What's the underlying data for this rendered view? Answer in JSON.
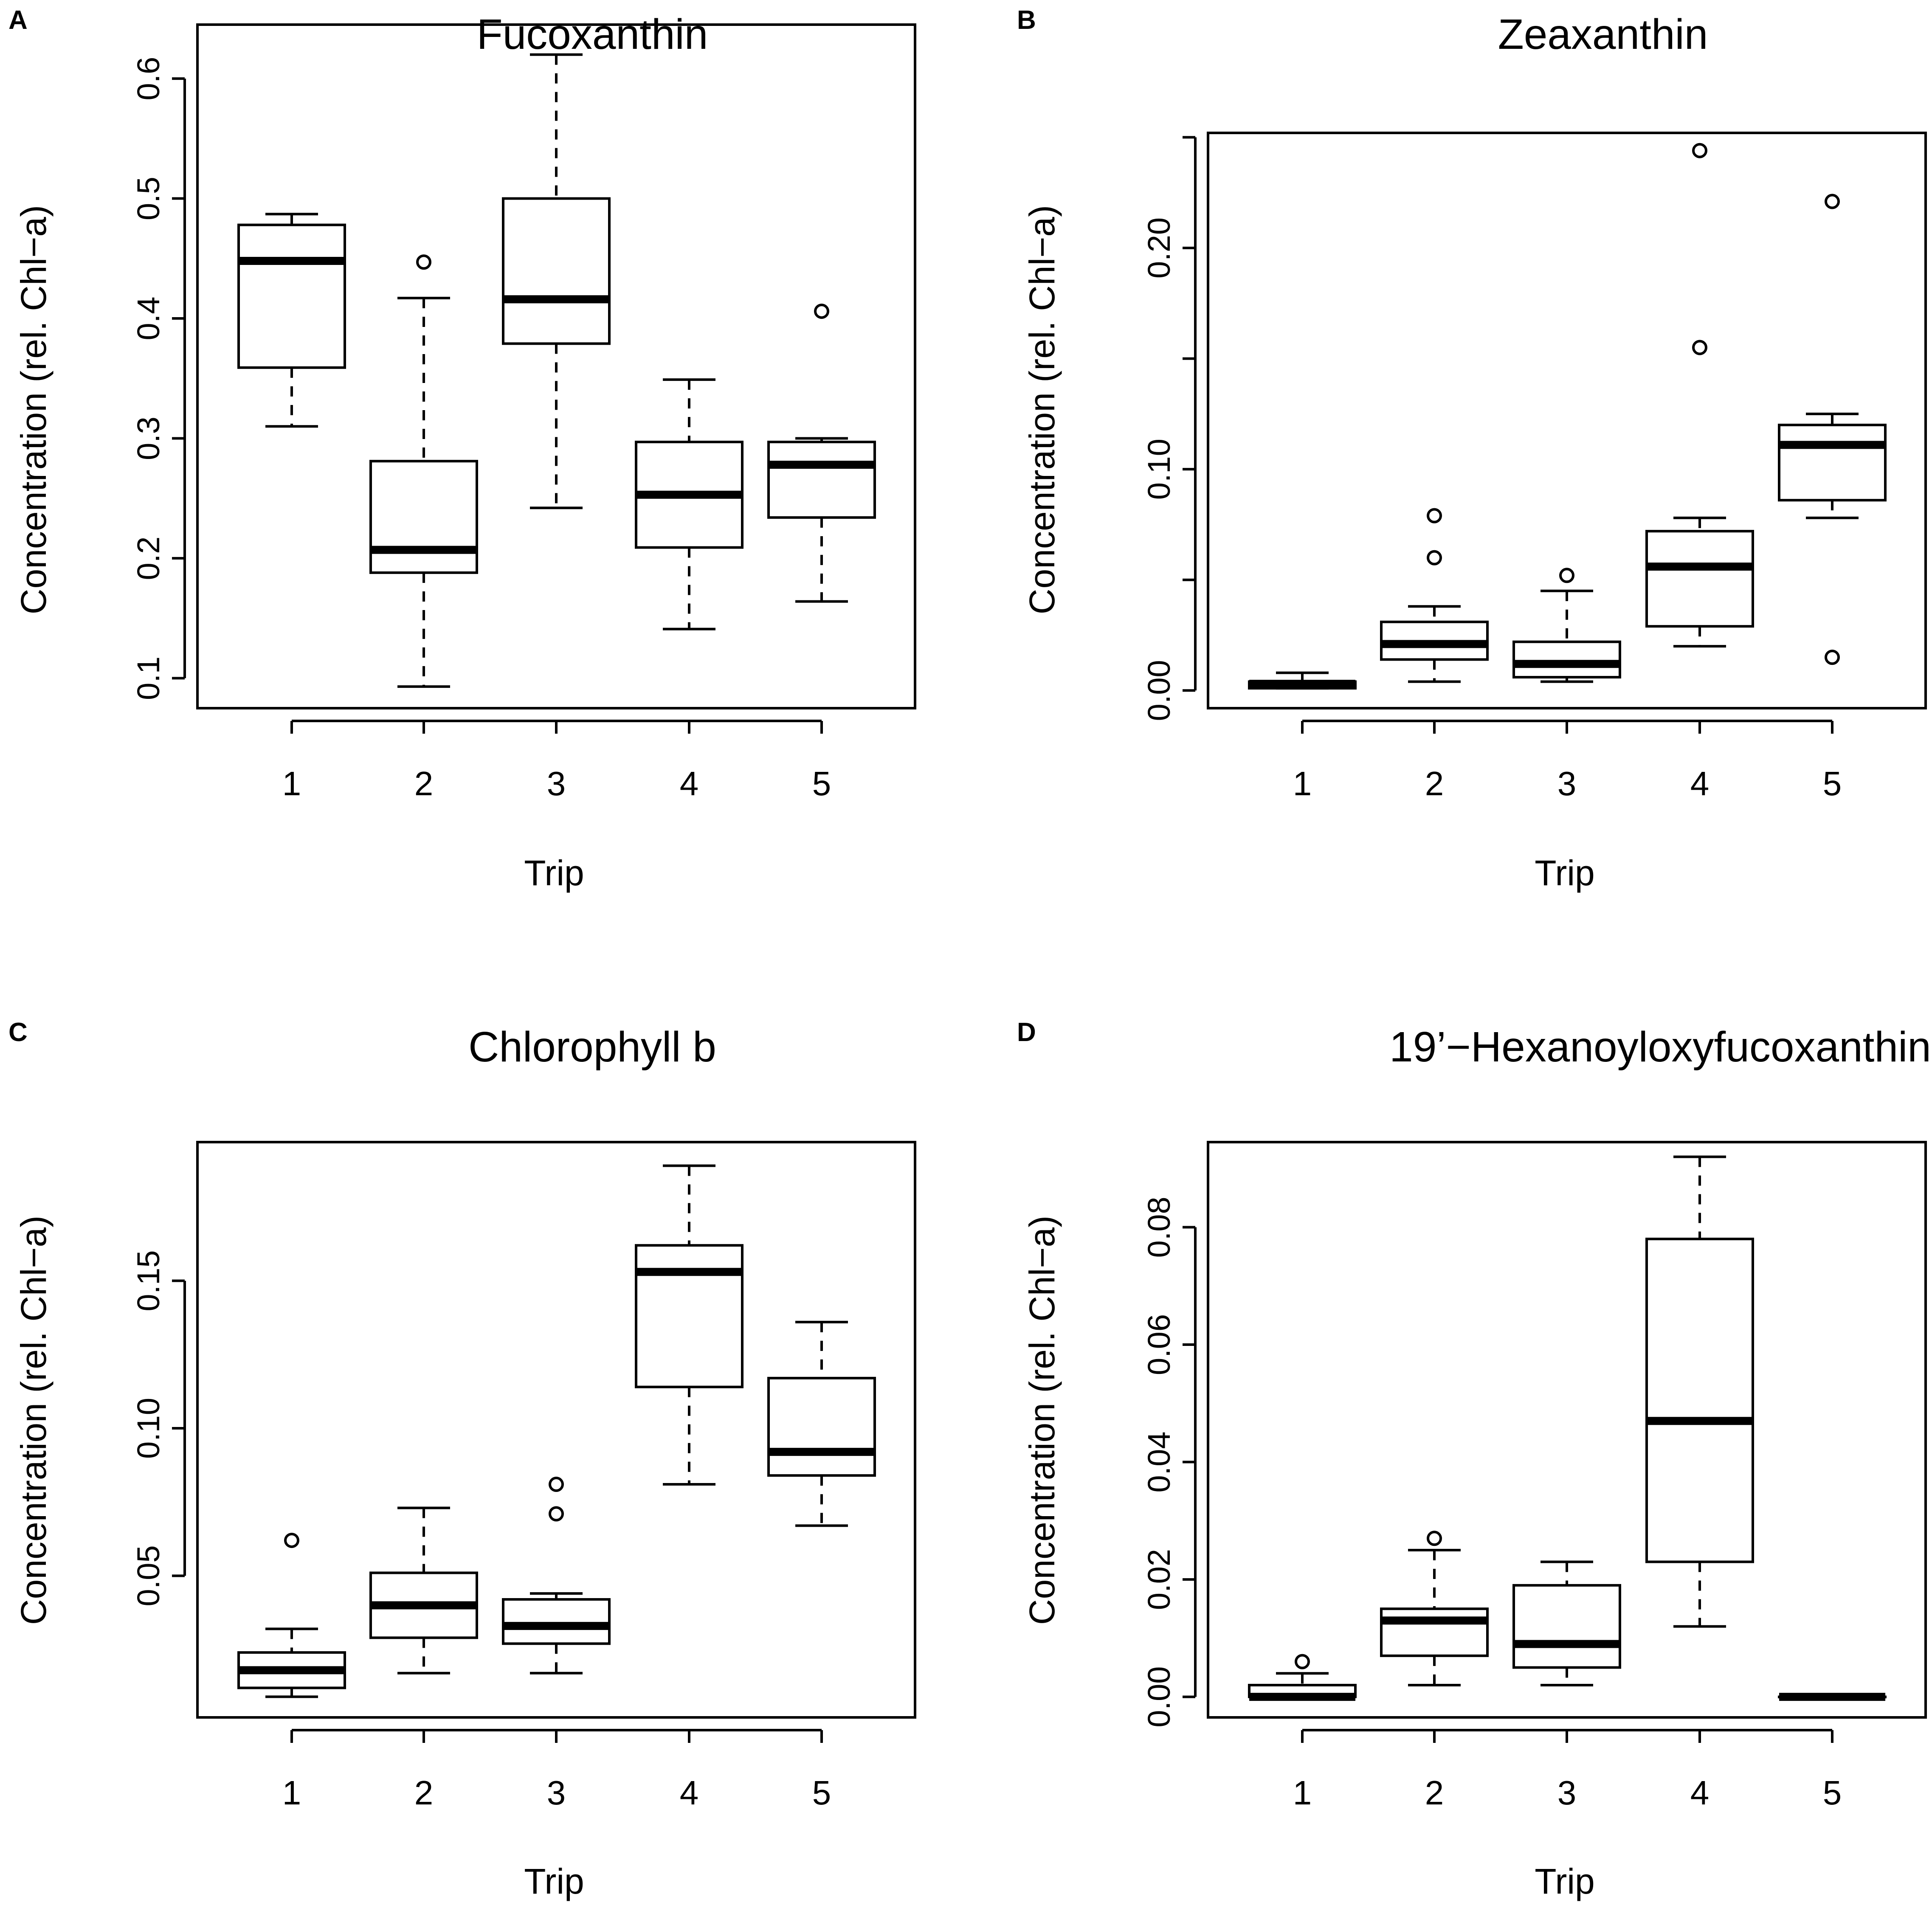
{
  "figure": {
    "colors": {
      "ink": "#000000",
      "box_fill": "#ffffff",
      "background": "#ffffff"
    }
  },
  "chart_data": [
    {
      "id": "A",
      "panel_letter": "A",
      "type": "boxplot",
      "title": "Fucoxanthin",
      "xlabel": "Trip",
      "ylabel": "Concentration (rel. Chl−a)",
      "categories": [
        "1",
        "2",
        "3",
        "4",
        "5"
      ],
      "ylim": [
        0.075,
        0.645
      ],
      "yticks": [
        0.1,
        0.2,
        0.3,
        0.4,
        0.5,
        0.6
      ],
      "ytick_labels": [
        "0.1",
        "0.2",
        "0.3",
        "0.4",
        "0.5",
        "0.6"
      ],
      "boxes": [
        {
          "trip": "1",
          "whisker_low": 0.31,
          "q1": 0.359,
          "median": 0.448,
          "q3": 0.478,
          "whisker_high": 0.487,
          "outliers": []
        },
        {
          "trip": "2",
          "whisker_low": 0.093,
          "q1": 0.188,
          "median": 0.207,
          "q3": 0.281,
          "whisker_high": 0.417,
          "outliers": [
            0.447
          ]
        },
        {
          "trip": "3",
          "whisker_low": 0.242,
          "q1": 0.379,
          "median": 0.416,
          "q3": 0.5,
          "whisker_high": 0.62,
          "outliers": []
        },
        {
          "trip": "4",
          "whisker_low": 0.141,
          "q1": 0.209,
          "median": 0.253,
          "q3": 0.297,
          "whisker_high": 0.349,
          "outliers": []
        },
        {
          "trip": "5",
          "whisker_low": 0.164,
          "q1": 0.234,
          "median": 0.278,
          "q3": 0.297,
          "whisker_high": 0.3,
          "outliers": [
            0.406
          ]
        }
      ]
    },
    {
      "id": "B",
      "panel_letter": "B",
      "type": "boxplot",
      "title": "Zeaxanthin",
      "xlabel": "Trip",
      "ylabel": "Concentration (rel. Chl−a)",
      "categories": [
        "1",
        "2",
        "3",
        "4",
        "5"
      ],
      "ylim": [
        -0.008,
        0.252
      ],
      "yticks": [
        0.0,
        0.05,
        0.1,
        0.15,
        0.2,
        0.25
      ],
      "ytick_labels": [
        "0.00",
        "",
        "0.10",
        "",
        "0.20",
        ""
      ],
      "boxes": [
        {
          "trip": "1",
          "whisker_low": 0.001,
          "q1": 0.001,
          "median": 0.003,
          "q3": 0.004,
          "whisker_high": 0.008,
          "outliers": []
        },
        {
          "trip": "2",
          "whisker_low": 0.004,
          "q1": 0.014,
          "median": 0.021,
          "q3": 0.031,
          "whisker_high": 0.038,
          "outliers": [
            0.06,
            0.079
          ]
        },
        {
          "trip": "3",
          "whisker_low": 0.004,
          "q1": 0.006,
          "median": 0.012,
          "q3": 0.022,
          "whisker_high": 0.045,
          "outliers": [
            0.052
          ]
        },
        {
          "trip": "4",
          "whisker_low": 0.02,
          "q1": 0.029,
          "median": 0.056,
          "q3": 0.072,
          "whisker_high": 0.078,
          "outliers": [
            0.155,
            0.244
          ]
        },
        {
          "trip": "5",
          "whisker_low": 0.078,
          "q1": 0.086,
          "median": 0.111,
          "q3": 0.12,
          "whisker_high": 0.125,
          "outliers": [
            0.015,
            0.221
          ]
        }
      ]
    },
    {
      "id": "C",
      "panel_letter": "C",
      "type": "boxplot",
      "title": "Chlorophyll b",
      "xlabel": "Trip",
      "ylabel": "Concentration (rel. Chl−a)",
      "categories": [
        "1",
        "2",
        "3",
        "4",
        "5"
      ],
      "ylim": [
        0.002,
        0.197
      ],
      "yticks": [
        0.05,
        0.1,
        0.15
      ],
      "ytick_labels": [
        "0.05",
        "0.10",
        "0.15"
      ],
      "boxes": [
        {
          "trip": "1",
          "whisker_low": 0.009,
          "q1": 0.012,
          "median": 0.018,
          "q3": 0.024,
          "whisker_high": 0.032,
          "outliers": [
            0.062
          ]
        },
        {
          "trip": "2",
          "whisker_low": 0.017,
          "q1": 0.029,
          "median": 0.04,
          "q3": 0.051,
          "whisker_high": 0.073,
          "outliers": []
        },
        {
          "trip": "3",
          "whisker_low": 0.017,
          "q1": 0.027,
          "median": 0.033,
          "q3": 0.042,
          "whisker_high": 0.044,
          "outliers": [
            0.071,
            0.081
          ]
        },
        {
          "trip": "4",
          "whisker_low": 0.081,
          "q1": 0.114,
          "median": 0.153,
          "q3": 0.162,
          "whisker_high": 0.189,
          "outliers": []
        },
        {
          "trip": "5",
          "whisker_low": 0.067,
          "q1": 0.084,
          "median": 0.092,
          "q3": 0.117,
          "whisker_high": 0.136,
          "outliers": []
        }
      ]
    },
    {
      "id": "D",
      "panel_letter": "D",
      "type": "boxplot",
      "title": "19’−Hexanoyloxyfucoxanthin",
      "xlabel": "Trip",
      "ylabel": "Concentration (rel. Chl−a)",
      "categories": [
        "1",
        "2",
        "3",
        "4",
        "5"
      ],
      "ylim": [
        -0.0035,
        0.0945
      ],
      "yticks": [
        0.0,
        0.02,
        0.04,
        0.06,
        0.08
      ],
      "ytick_labels": [
        "0.00",
        "0.02",
        "0.04",
        "0.06",
        "0.08"
      ],
      "boxes": [
        {
          "trip": "1",
          "whisker_low": 0.0,
          "q1": 0.0,
          "median": 0.0,
          "q3": 0.002,
          "whisker_high": 0.004,
          "outliers": [
            0.006
          ]
        },
        {
          "trip": "2",
          "whisker_low": 0.002,
          "q1": 0.007,
          "median": 0.013,
          "q3": 0.015,
          "whisker_high": 0.025,
          "outliers": [
            0.027
          ]
        },
        {
          "trip": "3",
          "whisker_low": 0.002,
          "q1": 0.005,
          "median": 0.009,
          "q3": 0.019,
          "whisker_high": 0.023,
          "outliers": []
        },
        {
          "trip": "4",
          "whisker_low": 0.012,
          "q1": 0.023,
          "median": 0.047,
          "q3": 0.078,
          "whisker_high": 0.092,
          "outliers": []
        },
        {
          "trip": "5",
          "whisker_low": 0.0,
          "q1": 0.0,
          "median": 0.0,
          "q3": 0.0,
          "whisker_high": 0.0,
          "outliers": []
        }
      ]
    }
  ]
}
